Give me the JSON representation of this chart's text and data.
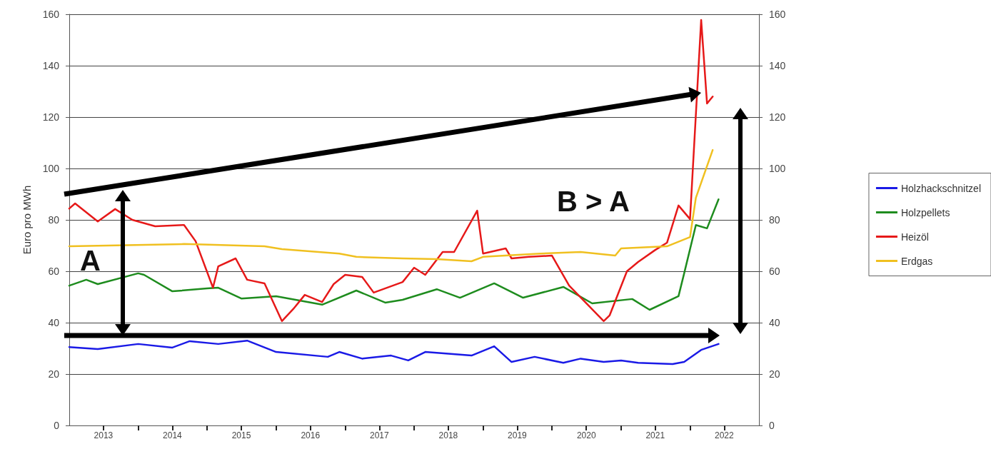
{
  "chart_data": {
    "type": "line",
    "ylabel": "Euro pro MWh",
    "xlim": [
      "2013-01",
      "2023-01"
    ],
    "xticks": [
      {
        "value": "2013-07",
        "label": "2013"
      },
      {
        "value": "2014-01",
        "label": null
      },
      {
        "value": "2014-07",
        "label": "2014"
      },
      {
        "value": "2015-01",
        "label": null
      },
      {
        "value": "2015-07",
        "label": "2015"
      },
      {
        "value": "2016-01",
        "label": null
      },
      {
        "value": "2016-07",
        "label": "2016"
      },
      {
        "value": "2017-01",
        "label": null
      },
      {
        "value": "2017-07",
        "label": "2017"
      },
      {
        "value": "2018-01",
        "label": null
      },
      {
        "value": "2018-07",
        "label": "2018"
      },
      {
        "value": "2019-01",
        "label": null
      },
      {
        "value": "2019-07",
        "label": "2019"
      },
      {
        "value": "2020-01",
        "label": null
      },
      {
        "value": "2020-07",
        "label": "2020"
      },
      {
        "value": "2021-01",
        "label": null
      },
      {
        "value": "2021-07",
        "label": "2021"
      },
      {
        "value": "2022-01",
        "label": null
      },
      {
        "value": "2022-07",
        "label": "2022"
      }
    ],
    "ylim": [
      0,
      160
    ],
    "yticks": [
      0,
      20,
      40,
      60,
      80,
      100,
      120,
      140,
      160
    ],
    "y2lim": [
      0,
      160
    ],
    "y2ticks": [
      0,
      20,
      40,
      60,
      80,
      100,
      120,
      140,
      160
    ],
    "grid": "y",
    "legend": "right",
    "marker": "none",
    "line_style": "solid",
    "annotations": [
      "A",
      "B > A"
    ],
    "series": [
      {
        "name": "Holzhackschnitzel",
        "color": "#1a1ae6",
        "x": [
          "2013-01",
          "2013-06",
          "2014-01",
          "2014-07",
          "2014-10",
          "2015-03",
          "2015-08",
          "2016-01",
          "2016-10",
          "2016-12",
          "2017-04",
          "2017-09",
          "2017-12",
          "2018-03",
          "2018-11",
          "2019-03",
          "2019-06",
          "2019-10",
          "2020-03",
          "2020-06",
          "2020-10",
          "2021-01",
          "2021-04",
          "2021-10",
          "2021-12",
          "2022-03",
          "2022-06"
        ],
        "values": [
          30.5,
          29.7,
          31.7,
          30.3,
          32.8,
          31.7,
          33,
          28.6,
          26.7,
          28.6,
          26,
          27.2,
          25.3,
          28.6,
          27.2,
          30.8,
          24.7,
          26.7,
          24.4,
          26,
          24.7,
          25.3,
          24.4,
          23.9,
          24.7,
          29.4,
          31.7
        ]
      },
      {
        "name": "Holzpellets",
        "color": "#1e8c1e",
        "x": [
          "2013-01",
          "2013-04",
          "2013-06",
          "2014-01",
          "2014-02",
          "2014-07",
          "2015-01",
          "2015-03",
          "2015-07",
          "2016-01",
          "2016-09",
          "2017-03",
          "2017-08",
          "2017-11",
          "2018-05",
          "2018-09",
          "2019-03",
          "2019-08",
          "2020-03",
          "2020-08",
          "2021-03",
          "2021-06",
          "2021-11",
          "2021-12",
          "2022-02",
          "2022-04",
          "2022-06"
        ],
        "values": [
          54.4,
          56.7,
          55,
          59.2,
          58.6,
          52.2,
          53.3,
          53.6,
          49.4,
          50.3,
          47,
          52.5,
          47.8,
          48.9,
          53,
          49.7,
          55.3,
          49.7,
          53.9,
          47.5,
          49.2,
          45,
          50.3,
          59.2,
          78,
          76.7,
          88
        ]
      },
      {
        "name": "Heizöl",
        "color": "#e61919",
        "x": [
          "2013-01",
          "2013-02",
          "2013-06",
          "2013-09",
          "2013-12",
          "2014-04",
          "2014-09",
          "2014-11",
          "2015-02",
          "2015-03",
          "2015-06",
          "2015-08",
          "2015-11",
          "2016-02",
          "2016-04",
          "2016-06",
          "2016-09",
          "2016-11",
          "2017-01",
          "2017-04",
          "2017-06",
          "2017-11",
          "2018-01",
          "2018-03",
          "2018-06",
          "2018-08",
          "2018-12",
          "2019-01",
          "2019-05",
          "2019-06",
          "2019-09",
          "2020-01",
          "2020-04",
          "2020-10",
          "2020-11",
          "2021-02",
          "2021-04",
          "2021-07",
          "2021-09",
          "2021-11",
          "2022-01",
          "2022-03",
          "2022-04",
          "2022-05"
        ],
        "values": [
          84.4,
          86.4,
          79.4,
          84.2,
          80,
          77.5,
          78,
          71.7,
          53.6,
          61.9,
          65,
          56.7,
          55.3,
          40.6,
          45.3,
          50.8,
          48,
          55,
          58.6,
          57.8,
          51.7,
          55.8,
          61.4,
          58.6,
          67.5,
          67.5,
          83.6,
          66.9,
          68.9,
          65,
          65.6,
          66.1,
          54.4,
          40.6,
          42.8,
          60,
          63.6,
          68.3,
          71.1,
          85.6,
          80.3,
          157.8,
          125.3,
          128
        ]
      },
      {
        "name": "Erdgas",
        "color": "#f0c020",
        "x": [
          "2013-01",
          "2014-09",
          "2015-11",
          "2016-02",
          "2016-12",
          "2017-03",
          "2017-11",
          "2018-05",
          "2018-11",
          "2019-01",
          "2019-11",
          "2020-06",
          "2020-12",
          "2021-01",
          "2021-09",
          "2022-01",
          "2022-02",
          "2022-05"
        ],
        "values": [
          69.7,
          70.6,
          69.7,
          68.6,
          66.9,
          65.6,
          65,
          64.7,
          63.9,
          65.6,
          66.9,
          67.5,
          66.1,
          68.9,
          69.7,
          73.3,
          88.6,
          107.2
        ]
      }
    ]
  }
}
